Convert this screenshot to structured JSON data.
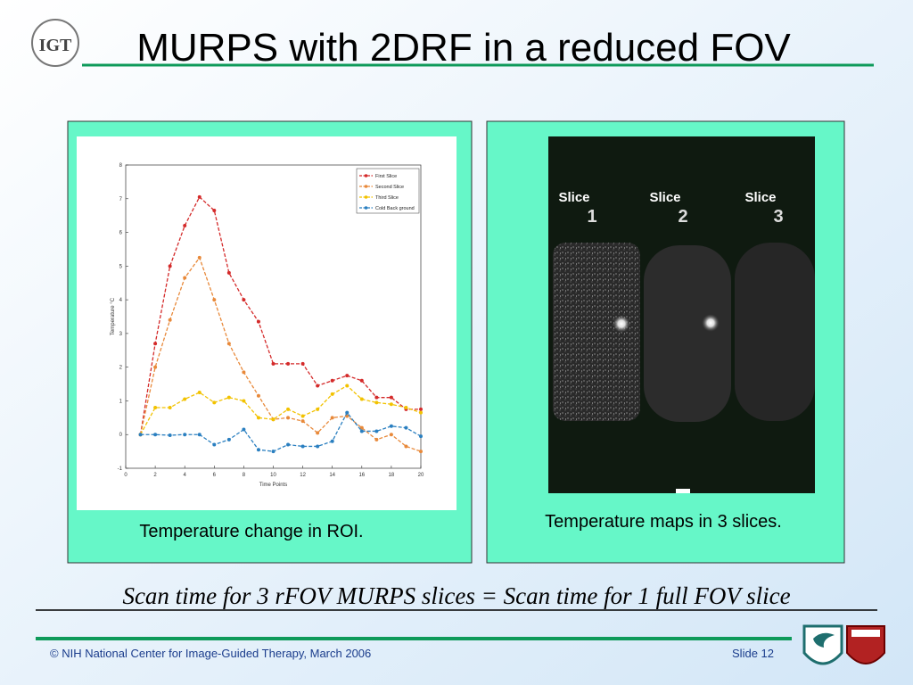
{
  "header": {
    "logo": "IGT",
    "title": "MURPS with 2DRF in a reduced FOV"
  },
  "chart_data": {
    "type": "line",
    "x_label": "Time Points",
    "y_label": "Temperature °C",
    "x": [
      1,
      2,
      3,
      4,
      5,
      6,
      7,
      8,
      9,
      10,
      11,
      12,
      13,
      14,
      15,
      16,
      17,
      18,
      19,
      20
    ],
    "series": [
      {
        "name": "First Slice",
        "color": "#d42a2a",
        "values": [
          0,
          2.7,
          5.0,
          6.2,
          7.05,
          6.65,
          4.8,
          4.0,
          3.35,
          2.1,
          2.1,
          2.1,
          1.45,
          1.6,
          1.75,
          1.6,
          1.1,
          1.1,
          0.75,
          0.75
        ]
      },
      {
        "name": "Second Slice",
        "color": "#e8893a",
        "values": [
          0,
          2.0,
          3.4,
          4.65,
          5.25,
          4.0,
          2.7,
          1.85,
          1.15,
          0.45,
          0.5,
          0.4,
          0.05,
          0.5,
          0.55,
          0.2,
          -0.15,
          0.0,
          -0.35,
          -0.5
        ]
      },
      {
        "name": "Third Slice",
        "color": "#f2c200",
        "values": [
          0,
          0.8,
          0.8,
          1.05,
          1.25,
          0.95,
          1.1,
          1.0,
          0.5,
          0.45,
          0.75,
          0.55,
          0.75,
          1.2,
          1.45,
          1.05,
          0.95,
          0.9,
          0.8,
          0.65
        ]
      },
      {
        "name": "Cold Back ground",
        "color": "#2a7fc0",
        "values": [
          0,
          0.0,
          -0.02,
          0.0,
          0.0,
          -0.3,
          -0.15,
          0.15,
          -0.45,
          -0.5,
          -0.3,
          -0.35,
          -0.35,
          -0.2,
          0.65,
          0.1,
          0.1,
          0.25,
          0.2,
          -0.05
        ]
      }
    ],
    "xlim": [
      0,
      20
    ],
    "xticks": [
      0,
      2,
      4,
      6,
      8,
      10,
      12,
      14,
      16,
      18,
      20
    ],
    "ylim": [
      -1,
      8
    ],
    "yticks": [
      -1,
      0,
      1,
      2,
      3,
      4,
      5,
      6,
      7,
      8
    ],
    "legend": "upper right"
  },
  "left_caption": "Temperature change in ROI.",
  "slices": [
    {
      "label": "Slice",
      "number": "1"
    },
    {
      "label": "Slice",
      "number": "2"
    },
    {
      "label": "Slice",
      "number": "3"
    }
  ],
  "right_caption": "Temperature maps in 3 slices.",
  "statement": "Scan time for 3 rFOV MURPS slices = Scan time for 1 full FOV slice",
  "footer": {
    "copyright": "© NIH National Center for Image-Guided Therapy, March 2006",
    "slide": "Slide 12"
  }
}
